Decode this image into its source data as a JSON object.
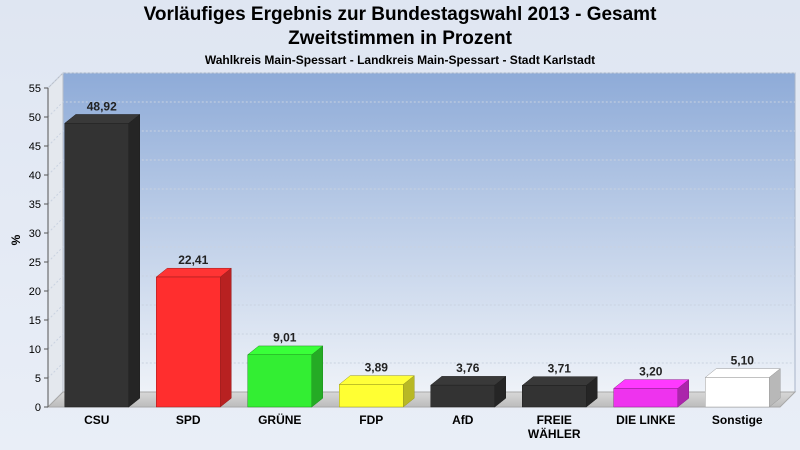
{
  "header": {
    "title_line1": "Vorläufiges Ergebnis zur Bundestagswahl 2013 - Gesamt",
    "title_line2": "Zweitstimmen in Prozent",
    "subtitle": "Wahlkreis Main-Spessart - Landkreis Main-Spessart - Stadt Karlstadt"
  },
  "chart_data": {
    "type": "bar",
    "title": "Vorläufiges Ergebnis zur Bundestagswahl 2013 - Gesamt Zweitstimmen in Prozent",
    "subtitle": "Wahlkreis Main-Spessart - Landkreis Main-Spessart - Stadt Karlstadt",
    "xlabel": "",
    "ylabel": "%",
    "ylim": [
      0,
      55
    ],
    "yticks": [
      0,
      5,
      10,
      15,
      20,
      25,
      30,
      35,
      40,
      45,
      50,
      55
    ],
    "grid": true,
    "categories": [
      [
        "CSU"
      ],
      [
        "SPD"
      ],
      [
        "GRÜNE"
      ],
      [
        "FDP"
      ],
      [
        "AfD"
      ],
      [
        "FREIE",
        "WÄHLER"
      ],
      [
        "DIE LINKE"
      ],
      [
        "Sonstige"
      ]
    ],
    "values": [
      48.92,
      22.41,
      9.01,
      3.89,
      3.76,
      3.71,
      3.2,
      5.1
    ],
    "value_labels": [
      "48,92",
      "22,41",
      "9,01",
      "3,89",
      "3,76",
      "3,71",
      "3,20",
      "5,10"
    ],
    "colors": [
      "#333333",
      "#ff2e2e",
      "#33ee33",
      "#ffff33",
      "#333333",
      "#333333",
      "#ee33ee",
      "#ffffff"
    ]
  }
}
